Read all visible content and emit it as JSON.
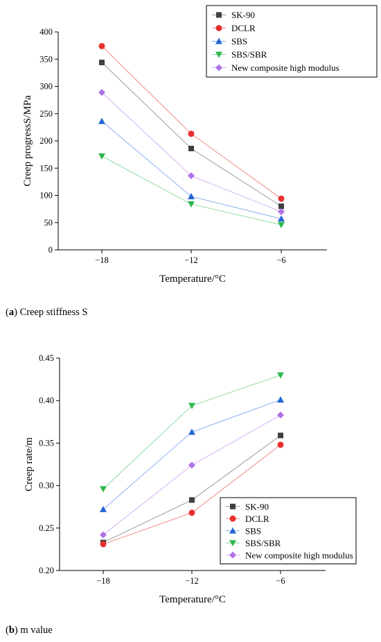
{
  "chart_data": [
    {
      "type": "line",
      "caption_letter": "a",
      "caption_text": "Creep stiffness S",
      "xlabel": "Temperature/°C",
      "ylabel": "Creep progressS/MPa",
      "categories": [
        "−18",
        "−12",
        "−6"
      ],
      "ylim": [
        0,
        400
      ],
      "yticks": [
        0,
        50,
        100,
        150,
        200,
        250,
        300,
        350,
        400
      ],
      "ytick_labels": [
        "0",
        "50",
        "100",
        "150",
        "200",
        "250",
        "300",
        "350",
        "400"
      ],
      "legend_position": "top-right",
      "series": [
        {
          "name": "SK-90",
          "marker": "square",
          "color": "#404040",
          "line_color": "#9a9a9a",
          "values": [
            344,
            186,
            80
          ]
        },
        {
          "name": "DCLR",
          "marker": "circle",
          "color": "#e8312f",
          "line_color": "#f08a86",
          "values": [
            374,
            213,
            94
          ]
        },
        {
          "name": "SBS",
          "marker": "triangle-up",
          "color": "#2266d4",
          "line_color": "#8ab0ee",
          "values": [
            236,
            98,
            57
          ]
        },
        {
          "name": "SBS/SBR",
          "marker": "triangle-down",
          "color": "#2db84f",
          "line_color": "#8ed9a0",
          "values": [
            172,
            84,
            46
          ]
        },
        {
          "name": "New composite high modulus",
          "marker": "diamond",
          "color": "#b072e6",
          "line_color": "#d3b0f2",
          "values": [
            289,
            136,
            70
          ]
        }
      ]
    },
    {
      "type": "line",
      "caption_letter": "b",
      "caption_text": "m value",
      "xlabel": "Temperature/°C",
      "ylabel": "Creep rate/m",
      "categories": [
        "−18",
        "−12",
        "−6"
      ],
      "ylim": [
        0.2,
        0.45
      ],
      "yticks": [
        0.2,
        0.25,
        0.3,
        0.35,
        0.4,
        0.45
      ],
      "ytick_labels": [
        "0.20",
        "0.25",
        "0.30",
        "0.35",
        "0.40",
        "0.45"
      ],
      "legend_position": "bottom-right",
      "series": [
        {
          "name": "SK-90",
          "marker": "square",
          "color": "#404040",
          "line_color": "#9a9a9a",
          "values": [
            0.233,
            0.283,
            0.359
          ]
        },
        {
          "name": "DCLR",
          "marker": "circle",
          "color": "#e8312f",
          "line_color": "#f08a86",
          "values": [
            0.231,
            0.268,
            0.348
          ]
        },
        {
          "name": "SBS",
          "marker": "triangle-up",
          "color": "#2266d4",
          "line_color": "#8ab0ee",
          "values": [
            0.272,
            0.363,
            0.401
          ]
        },
        {
          "name": "SBS/SBR",
          "marker": "triangle-down",
          "color": "#2db84f",
          "line_color": "#8ed9a0",
          "values": [
            0.296,
            0.394,
            0.43
          ]
        },
        {
          "name": "New composite high modulus",
          "marker": "diamond",
          "color": "#b072e6",
          "line_color": "#d3b0f2",
          "values": [
            0.242,
            0.324,
            0.383
          ]
        }
      ]
    }
  ]
}
